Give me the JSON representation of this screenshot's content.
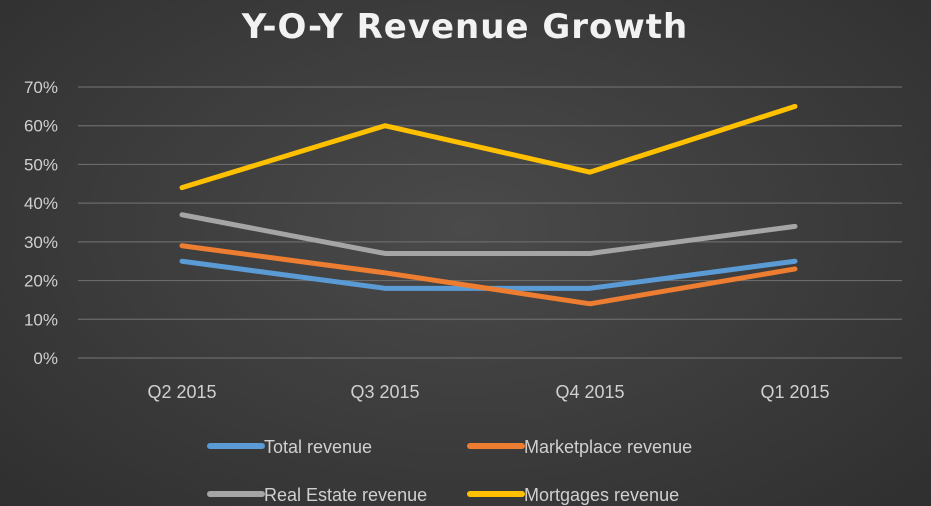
{
  "chart_data": {
    "type": "line",
    "title": "Y-O-Y Revenue Growth",
    "categories": [
      "Q2 2015",
      "Q3 2015",
      "Q4 2015",
      "Q1 2015"
    ],
    "y_ticks": [
      "0%",
      "10%",
      "20%",
      "30%",
      "40%",
      "50%",
      "60%",
      "70%"
    ],
    "ylim": [
      0,
      70
    ],
    "y_unit": "%",
    "grid": true,
    "legend_position": "bottom",
    "series": [
      {
        "name": "Total revenue",
        "color": "#5b9bd5",
        "values": [
          25,
          18,
          18,
          25
        ]
      },
      {
        "name": "Marketplace revenue",
        "color": "#ed7d31",
        "values": [
          29,
          22,
          14,
          23
        ]
      },
      {
        "name": "Real Estate revenue",
        "color": "#a5a5a5",
        "values": [
          37,
          27,
          27,
          34
        ]
      },
      {
        "name": "Mortgages revenue",
        "color": "#ffc000",
        "values": [
          44,
          60,
          48,
          65
        ]
      }
    ]
  }
}
